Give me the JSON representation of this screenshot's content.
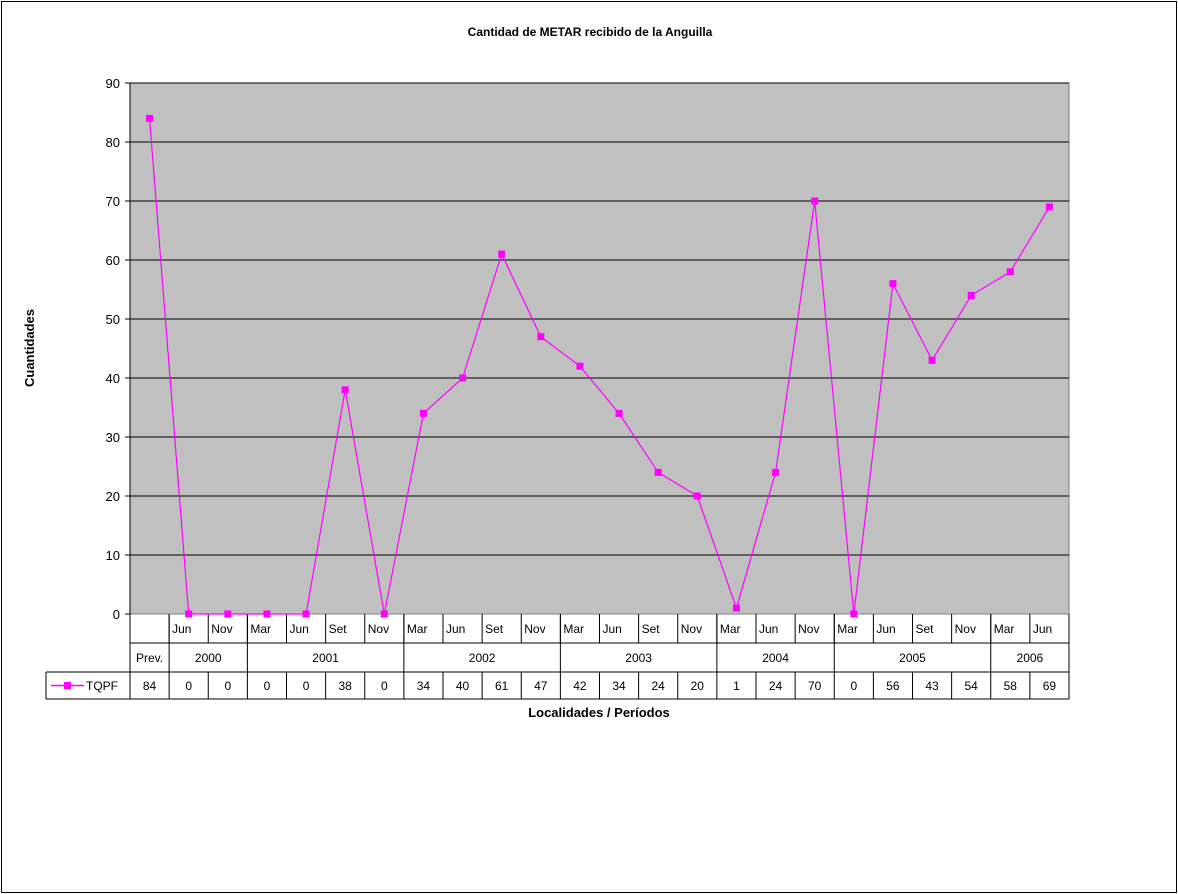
{
  "chart_data": {
    "type": "line",
    "title": "Cantidad de METAR recibido de la Anguilla",
    "xlabel": "Localidades / Períodos",
    "ylabel": "Cuantidades",
    "ylim": [
      0,
      90
    ],
    "yticks": [
      0,
      10,
      20,
      30,
      40,
      50,
      60,
      70,
      80,
      90
    ],
    "grid": true,
    "legend": "data-table-left",
    "categories": [
      "",
      "Jun",
      "Nov",
      "Mar",
      "Jun",
      "Set",
      "Nov",
      "Mar",
      "Jun",
      "Set",
      "Nov",
      "Mar",
      "Jun",
      "Set",
      "Nov",
      "Mar",
      "Jun",
      "Nov",
      "Mar",
      "Jun",
      "Set",
      "Nov",
      "Mar",
      "Jun"
    ],
    "groups": [
      {
        "label": "Prev.",
        "count": 1
      },
      {
        "label": "2000",
        "count": 2
      },
      {
        "label": "2001",
        "count": 4
      },
      {
        "label": "2002",
        "count": 4
      },
      {
        "label": "2003",
        "count": 4
      },
      {
        "label": "2004",
        "count": 3
      },
      {
        "label": "2005",
        "count": 4
      },
      {
        "label": "2006",
        "count": 2
      }
    ],
    "series": [
      {
        "name": "TQPF",
        "color": "#ff00ff",
        "values": [
          84,
          0,
          0,
          0,
          0,
          38,
          0,
          34,
          40,
          61,
          47,
          42,
          34,
          24,
          20,
          1,
          24,
          70,
          0,
          56,
          43,
          54,
          58,
          69
        ]
      }
    ],
    "colors": {
      "plot_background": "#c0c0c0",
      "gridline": "#000000"
    }
  }
}
